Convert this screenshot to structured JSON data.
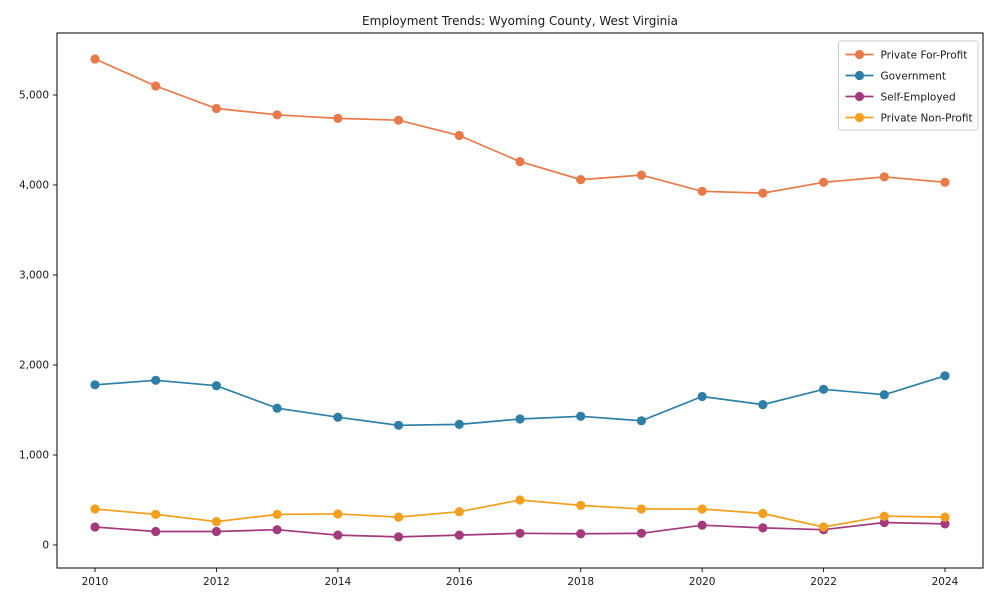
{
  "chart_data": {
    "type": "line",
    "title": "Employment Trends: Wyoming County, West Virginia",
    "xlabel": "",
    "ylabel": "",
    "x": [
      2010,
      2011,
      2012,
      2013,
      2014,
      2015,
      2016,
      2017,
      2018,
      2019,
      2020,
      2021,
      2022,
      2023,
      2024
    ],
    "xtick_labels": [
      "2010",
      "2012",
      "2014",
      "2016",
      "2018",
      "2020",
      "2022",
      "2024"
    ],
    "xticks": [
      2010,
      2012,
      2014,
      2016,
      2018,
      2020,
      2022,
      2024
    ],
    "yticks": [
      0,
      1000,
      2000,
      3000,
      4000,
      5000
    ],
    "ytick_labels": [
      "0",
      "1,000",
      "2,000",
      "3,000",
      "4,000",
      "5,000"
    ],
    "xlim": [
      2009.37,
      2024.63
    ],
    "ylim": [
      -250,
      5700
    ],
    "grid": false,
    "legend_position": "upper right",
    "frame_color": "#000000",
    "background_color": "#ffffff",
    "series": [
      {
        "name": "Private For-Profit",
        "color": "#e87a4a",
        "marker": "circle",
        "values": [
          5400,
          5100,
          4850,
          4780,
          4740,
          4720,
          4550,
          4260,
          4060,
          4110,
          3930,
          3910,
          4030,
          4090,
          4030
        ]
      },
      {
        "name": "Government",
        "color": "#2e7fa8",
        "marker": "circle",
        "values": [
          1780,
          1830,
          1770,
          1520,
          1420,
          1330,
          1340,
          1400,
          1430,
          1380,
          1650,
          1560,
          1730,
          1670,
          1880
        ]
      },
      {
        "name": "Self-Employed",
        "color": "#a23a7c",
        "marker": "circle",
        "values": [
          200,
          150,
          150,
          170,
          110,
          90,
          110,
          130,
          125,
          130,
          220,
          190,
          170,
          250,
          235
        ]
      },
      {
        "name": "Private Non-Profit",
        "color": "#f2a01e",
        "marker": "circle",
        "values": [
          400,
          340,
          260,
          340,
          345,
          310,
          370,
          500,
          440,
          400,
          400,
          350,
          200,
          320,
          310
        ]
      }
    ]
  }
}
